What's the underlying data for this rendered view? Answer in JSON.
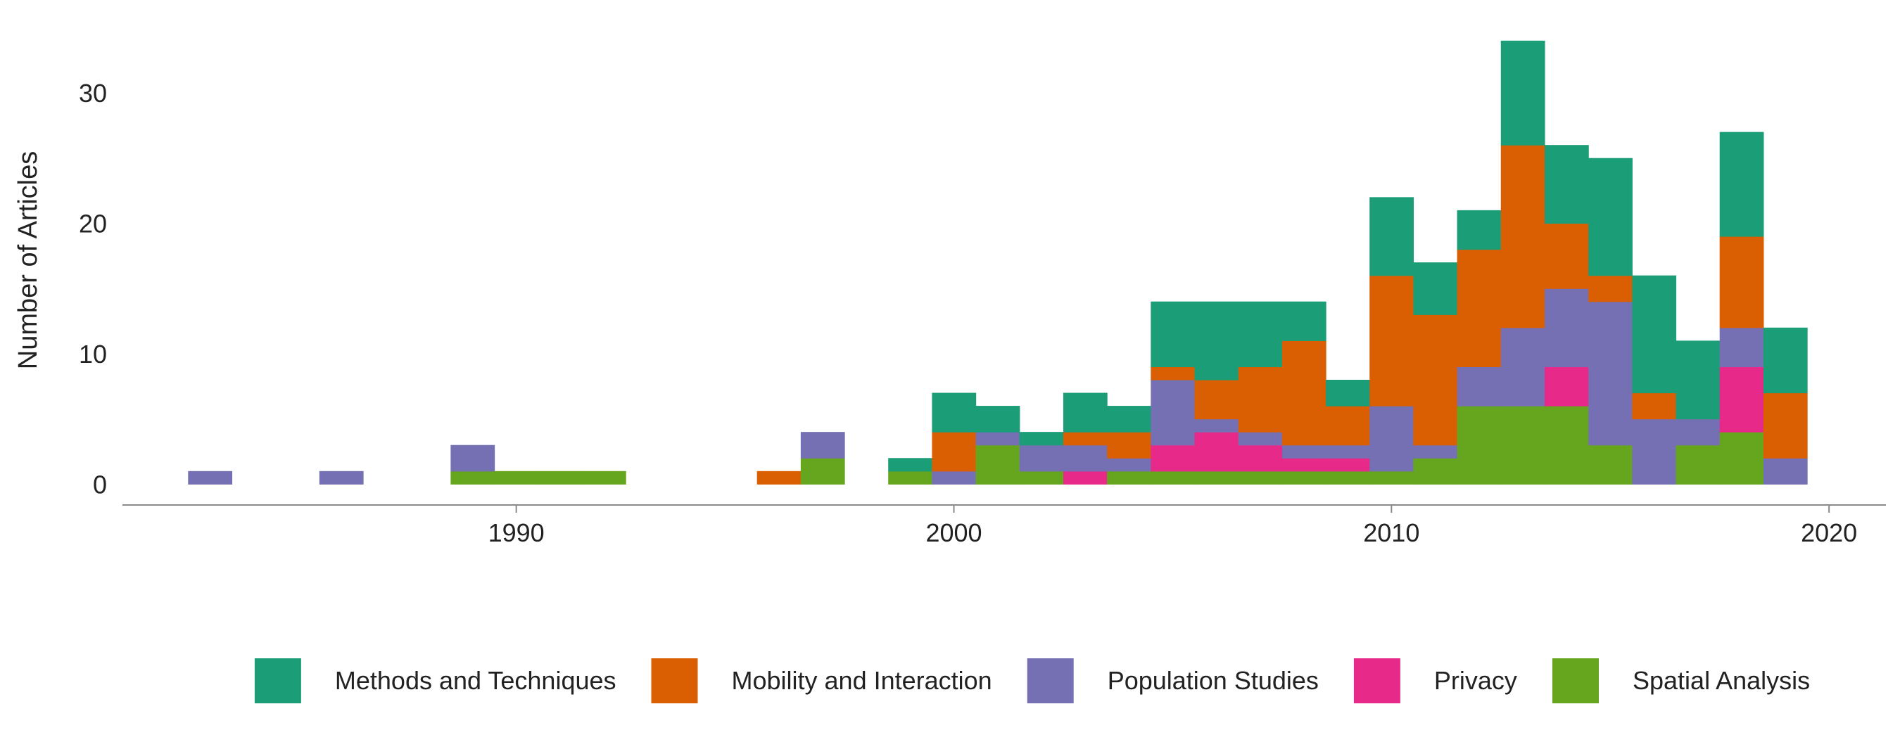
{
  "chart_data": {
    "type": "bar",
    "stacked": true,
    "title": "",
    "xlabel": "",
    "ylabel": "Number of Articles",
    "xlim": [
      1981,
      2021.3
    ],
    "ylim": [
      -1.6,
      35.5
    ],
    "x_ticks": [
      1990,
      2000,
      2010,
      2020
    ],
    "y_ticks": [
      0,
      10,
      20,
      30
    ],
    "grid": false,
    "legend_position": "bottom",
    "bin_width": 1,
    "x": [
      1983,
      1986,
      1989,
      1990,
      1991,
      1992,
      1996,
      1997,
      1999,
      2000,
      2001,
      2002,
      2003,
      2004,
      2005,
      2006,
      2007,
      2008,
      2009,
      2010,
      2011,
      2012,
      2013,
      2014,
      2015,
      2016,
      2017,
      2018,
      2019
    ],
    "series": [
      {
        "name": "Spatial Analysis",
        "color": "#66a61e",
        "values": [
          0,
          0,
          1,
          1,
          1,
          1,
          0,
          2,
          1,
          0,
          3,
          1,
          0,
          1,
          1,
          1,
          1,
          1,
          1,
          1,
          2,
          6,
          6,
          6,
          3,
          0,
          3,
          4,
          0
        ]
      },
      {
        "name": "Privacy",
        "color": "#e7298a",
        "values": [
          0,
          0,
          0,
          0,
          0,
          0,
          0,
          0,
          0,
          0,
          0,
          0,
          1,
          0,
          2,
          3,
          2,
          1,
          1,
          0,
          0,
          0,
          0,
          3,
          0,
          0,
          0,
          5,
          0
        ]
      },
      {
        "name": "Population Studies",
        "color": "#7570b3",
        "values": [
          1,
          1,
          2,
          0,
          0,
          0,
          0,
          2,
          0,
          1,
          1,
          2,
          2,
          1,
          5,
          1,
          1,
          1,
          1,
          5,
          1,
          3,
          6,
          6,
          11,
          5,
          2,
          3,
          2
        ]
      },
      {
        "name": "Mobility and Interaction",
        "color": "#d95f02",
        "values": [
          0,
          0,
          0,
          0,
          0,
          0,
          1,
          0,
          0,
          3,
          0,
          0,
          1,
          2,
          1,
          3,
          5,
          8,
          3,
          10,
          10,
          9,
          14,
          5,
          2,
          2,
          0,
          7,
          5
        ]
      },
      {
        "name": "Methods and Techniques",
        "color": "#1b9e77",
        "values": [
          0,
          0,
          0,
          0,
          0,
          0,
          0,
          0,
          1,
          3,
          2,
          1,
          3,
          2,
          5,
          6,
          5,
          3,
          2,
          6,
          4,
          3,
          8,
          6,
          9,
          9,
          6,
          8,
          5
        ]
      }
    ],
    "legend_order": [
      "Methods and Techniques",
      "Mobility and Interaction",
      "Population Studies",
      "Privacy",
      "Spatial Analysis"
    ]
  }
}
